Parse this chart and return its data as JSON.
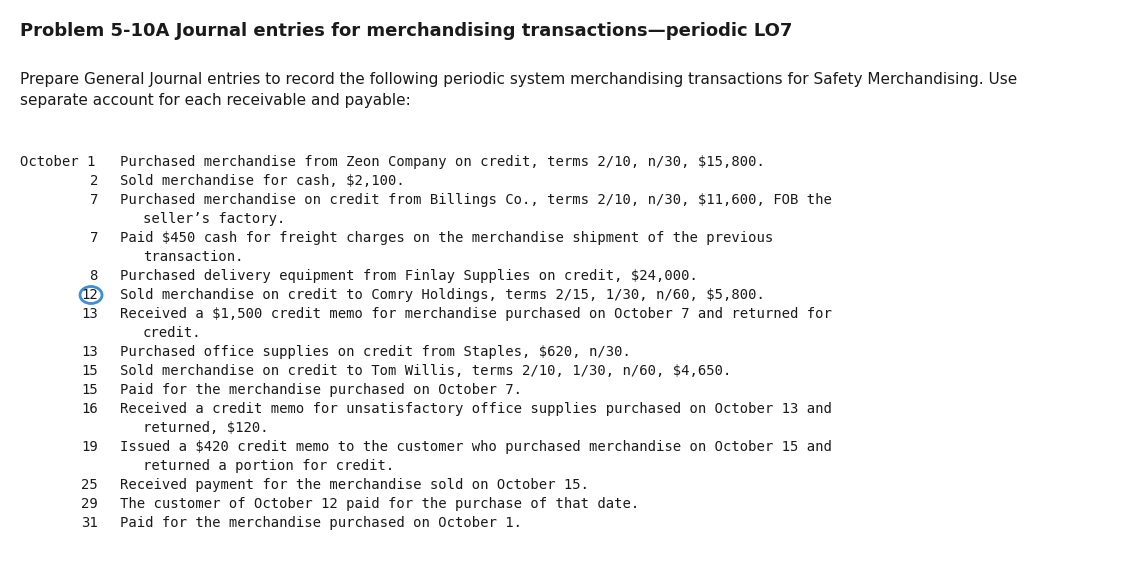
{
  "title": "Problem 5-10A Journal entries for merchandising transactions—periodic LO7",
  "title_fontsize": 13,
  "bg_color": "#ffffff",
  "intro_text": "Prepare General Journal entries to record the following periodic system merchandising transactions for Safety Merchandising. Use\nseparate account for each receivable and payable:",
  "intro_fontsize": 11,
  "mono_fontsize": 10,
  "text_color": "#1a1a1a",
  "circle_color": "#3a8fd9",
  "transactions": [
    {
      "day": "October 1",
      "text": "Purchased merchandise from Zeon Company on credit, terms 2/10, n/30, $15,800.",
      "type": "first"
    },
    {
      "day": "2",
      "text": "Sold merchandise for cash, $2,100.",
      "type": "normal"
    },
    {
      "day": "7",
      "text": "Purchased merchandise on credit from Billings Co., terms 2/10, n/30, $11,600, FOB the",
      "type": "normal"
    },
    {
      "day": "",
      "text": "seller’s factory.",
      "type": "continuation"
    },
    {
      "day": "7",
      "text": "Paid $450 cash for freight charges on the merchandise shipment of the previous",
      "type": "normal"
    },
    {
      "day": "",
      "text": "transaction.",
      "type": "continuation"
    },
    {
      "day": "8",
      "text": "Purchased delivery equipment from Finlay Supplies on credit, $24,000.",
      "type": "normal"
    },
    {
      "day": "12",
      "text": "Sold merchandise on credit to Comry Holdings, terms 2/15, 1/30, n/60, $5,800.",
      "type": "circle"
    },
    {
      "day": "13",
      "text": "Received a $1,500 credit memo for merchandise purchased on October 7 and returned for",
      "type": "normal"
    },
    {
      "day": "",
      "text": "credit.",
      "type": "continuation"
    },
    {
      "day": "13",
      "text": "Purchased office supplies on credit from Staples, $620, n/30.",
      "type": "normal"
    },
    {
      "day": "15",
      "text": "Sold merchandise on credit to Tom Willis, terms 2/10, 1/30, n/60, $4,650.",
      "type": "normal"
    },
    {
      "day": "15",
      "text": "Paid for the merchandise purchased on October 7.",
      "type": "normal"
    },
    {
      "day": "16",
      "text": "Received a credit memo for unsatisfactory office supplies purchased on October 13 and",
      "type": "normal"
    },
    {
      "day": "",
      "text": "returned, $120.",
      "type": "continuation"
    },
    {
      "day": "19",
      "text": "Issued a $420 credit memo to the customer who purchased merchandise on October 15 and",
      "type": "normal"
    },
    {
      "day": "",
      "text": "returned a portion for credit.",
      "type": "continuation"
    },
    {
      "day": "25",
      "text": "Received payment for the merchandise sold on October 15.",
      "type": "normal"
    },
    {
      "day": "29",
      "text": "The customer of October 12 paid for the purchase of that date.",
      "type": "normal"
    },
    {
      "day": "31",
      "text": "Paid for the merchandise purchased on October 1.",
      "type": "normal"
    }
  ]
}
